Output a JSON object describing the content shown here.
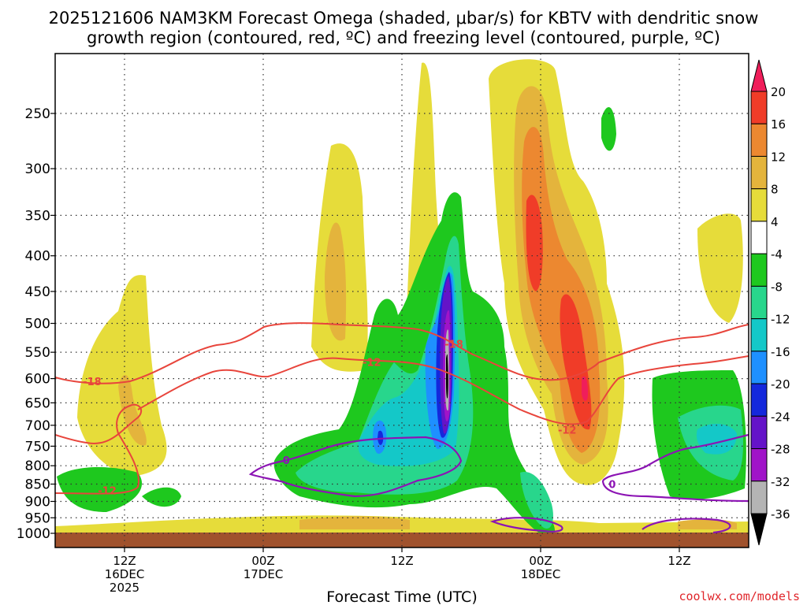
{
  "chart_data": {
    "type": "heatmap",
    "title_line1": "2025121606 NAM3KM Forecast Omega (shaded, μbar/s) for KBTV with dendritic snow",
    "title_line2": "growth region (contoured, red, ºC) and freezing level (contoured, purple, ºC)",
    "xlabel": "Forecast Time (UTC)",
    "credit": "coolwx.com/models",
    "x_ticks": [
      {
        "hour": 6,
        "line1": "12Z",
        "line2": "16DEC",
        "line3": "2025"
      },
      {
        "hour": 18,
        "line1": "00Z",
        "line2": "17DEC",
        "line3": ""
      },
      {
        "hour": 30,
        "line1": "12Z",
        "line2": "",
        "line3": ""
      },
      {
        "hour": 42,
        "line1": "00Z",
        "line2": "18DEC",
        "line3": ""
      },
      {
        "hour": 54,
        "line1": "12Z",
        "line2": "",
        "line3": ""
      }
    ],
    "x_range_hours": [
      0,
      60
    ],
    "y_levels_hpa": [
      250,
      300,
      350,
      400,
      450,
      500,
      550,
      600,
      650,
      700,
      750,
      800,
      850,
      900,
      950,
      1000
    ],
    "y_range_hpa": [
      200,
      1030
    ],
    "colorbar": {
      "labels": [
        "20",
        "16",
        "12",
        "8",
        "4",
        "-4",
        "-8",
        "-12",
        "-16",
        "-20",
        "-24",
        "-28",
        "-32",
        "-36"
      ],
      "colors": [
        "#f01e5a",
        "#f03c28",
        "#ec8830",
        "#e4b43c",
        "#e6dc3a",
        "#ffffff",
        "#1ec81e",
        "#28d68c",
        "#14c8c8",
        "#1e90ff",
        "#1428dc",
        "#6414c8",
        "#a014c8",
        "#b4b4b4",
        "#000000"
      ]
    },
    "contour_labels": [
      {
        "text": "-18",
        "hour": 3.2,
        "hpa": 605,
        "color": "#e8453c"
      },
      {
        "text": "-12",
        "hour": 4.5,
        "hpa": 868,
        "color": "#e8453c"
      },
      {
        "text": "-12",
        "hour": 27.4,
        "hpa": 568,
        "color": "#e8453c"
      },
      {
        "text": "-18",
        "hour": 34.5,
        "hpa": 535,
        "color": "#e8453c"
      },
      {
        "text": "-12",
        "hour": 44.3,
        "hpa": 710,
        "color": "#e8453c"
      },
      {
        "text": "0",
        "hour": 20.0,
        "hpa": 785,
        "color": "#8c14b4"
      },
      {
        "text": "0",
        "hour": 48.2,
        "hpa": 850,
        "color": "#8c14b4"
      }
    ],
    "omega_regions": [
      {
        "label": "20",
        "hour": 40.0,
        "hpa": 395
      },
      {
        "label": "16",
        "hour": 44.5,
        "hpa": 540
      },
      {
        "label": "-36",
        "hour": 34.1,
        "hpa": 590
      },
      {
        "label": "-24",
        "hour": 28.6,
        "hpa": 745
      }
    ]
  }
}
